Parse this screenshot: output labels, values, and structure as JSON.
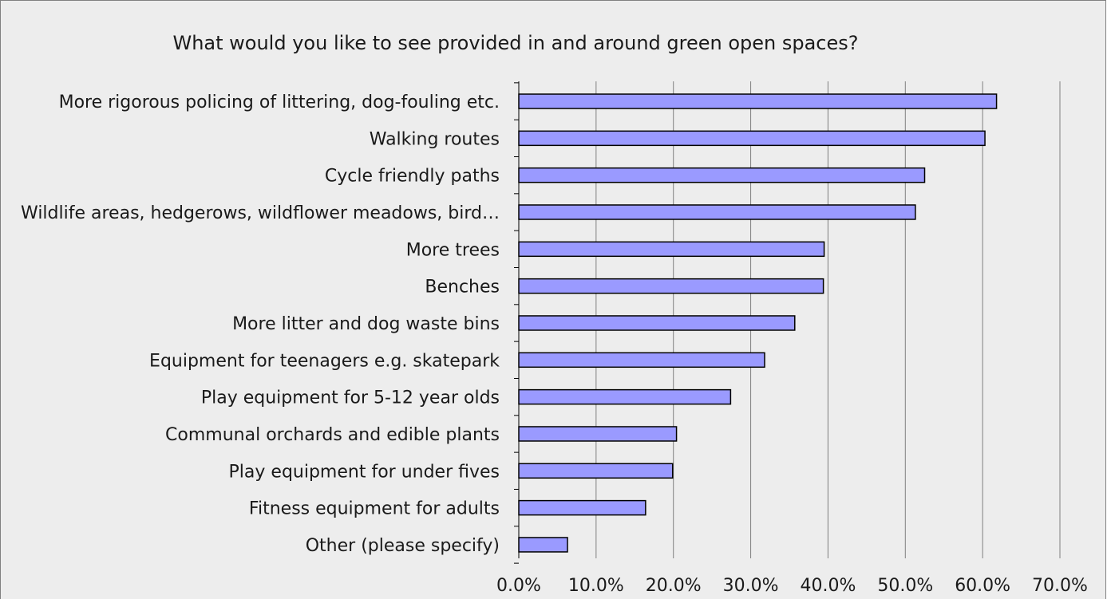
{
  "chart_data": {
    "type": "bar",
    "orientation": "horizontal",
    "title": "What would you like to see provided in and around green open spaces?",
    "categories": [
      "More rigorous policing of littering, dog-fouling etc.",
      "Walking routes",
      "Cycle friendly paths",
      "Wildlife areas, hedgerows, wildflower meadows, bird…",
      "More trees",
      "Benches",
      "More litter and dog waste bins",
      "Equipment for teenagers e.g. skatepark",
      "Play equipment for 5-12 year olds",
      "Communal orchards and edible plants",
      "Play equipment for under fives",
      "Fitness equipment for adults",
      "Other (please specify)"
    ],
    "values": [
      61.8,
      60.3,
      52.5,
      51.3,
      39.5,
      39.4,
      35.7,
      31.8,
      27.4,
      20.4,
      19.9,
      16.4,
      6.3
    ],
    "xlim": [
      0,
      70
    ],
    "x_ticks": [
      "0.0%",
      "10.0%",
      "20.0%",
      "30.0%",
      "40.0%",
      "50.0%",
      "60.0%",
      "70.0%"
    ],
    "xlabel": "",
    "ylabel": "",
    "grid": true,
    "legend": "none",
    "colors": {
      "bar_fill": "#9a9aff",
      "bar_stroke": "#000000",
      "plot_background": "#ededed",
      "gridline": "#7f7f7f"
    }
  }
}
